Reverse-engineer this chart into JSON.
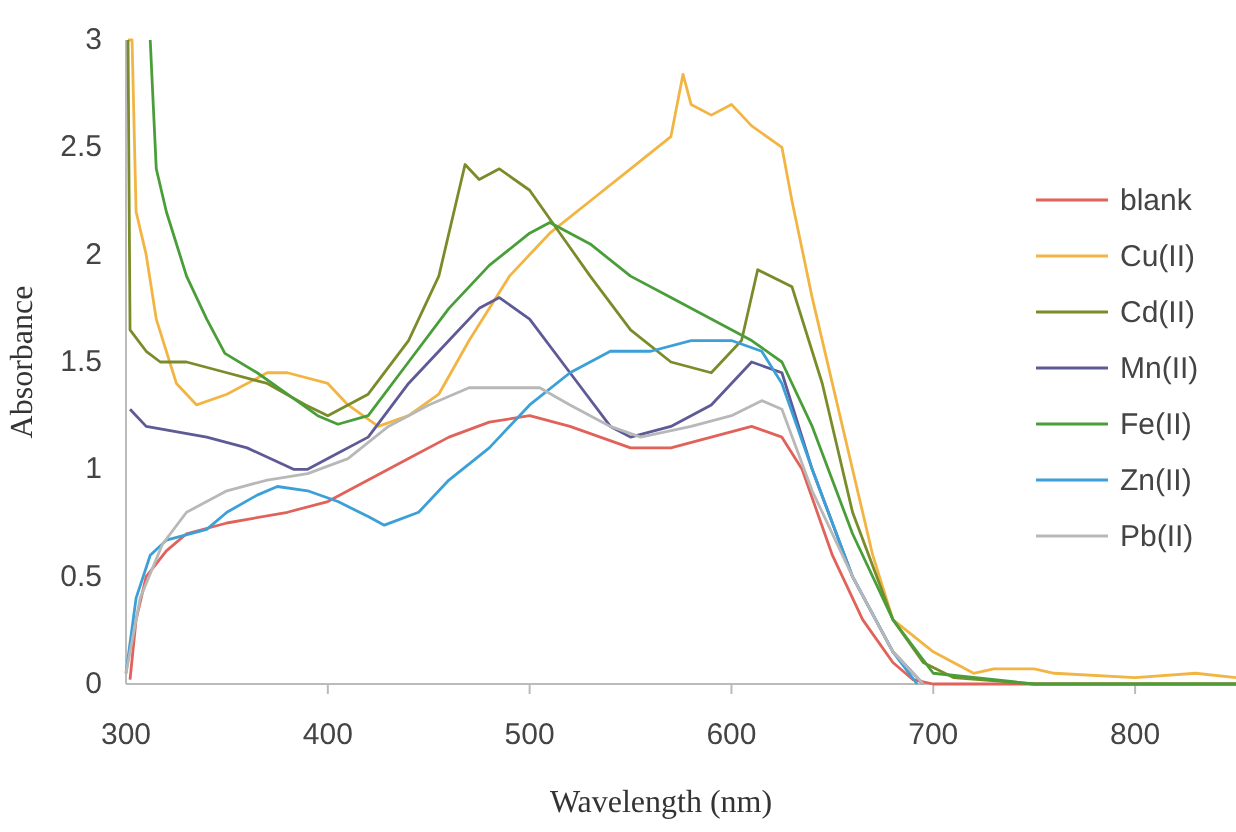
{
  "chart_data": {
    "type": "line",
    "xlabel": "Wavelength (nm)",
    "ylabel": "Absorbance",
    "xlim": [
      300,
      850
    ],
    "xticks": [
      300,
      400,
      500,
      600,
      700,
      800
    ],
    "ylim": [
      0,
      3
    ],
    "yticks": [
      0,
      0.5,
      1,
      1.5,
      2,
      2.5,
      3
    ],
    "grid": false,
    "legend": "right",
    "marker": "none",
    "line_style": "solid",
    "series": [
      {
        "name": "blank",
        "color": "#e0625a",
        "x": [
          302,
          305,
          310,
          320,
          330,
          350,
          380,
          400,
          420,
          440,
          460,
          480,
          500,
          520,
          550,
          570,
          590,
          610,
          625,
          635,
          650,
          665,
          680,
          690,
          700,
          750,
          800,
          850
        ],
        "values": [
          0.02,
          0.3,
          0.5,
          0.62,
          0.7,
          0.75,
          0.8,
          0.85,
          0.95,
          1.05,
          1.15,
          1.22,
          1.25,
          1.2,
          1.1,
          1.1,
          1.15,
          1.2,
          1.15,
          1.0,
          0.6,
          0.3,
          0.1,
          0.02,
          0,
          0,
          0,
          0
        ]
      },
      {
        "name": "Cu(II)",
        "color": "#f2b544",
        "x": [
          301,
          303,
          305,
          310,
          315,
          325,
          335,
          350,
          370,
          380,
          400,
          410,
          425,
          440,
          455,
          470,
          490,
          510,
          530,
          550,
          570,
          576,
          580,
          590,
          600,
          610,
          625,
          630,
          640,
          655,
          670,
          680,
          700,
          710,
          720,
          730,
          750,
          760,
          800,
          830,
          850
        ],
        "values": [
          3,
          3,
          2.2,
          2.0,
          1.7,
          1.4,
          1.3,
          1.35,
          1.45,
          1.45,
          1.4,
          1.3,
          1.2,
          1.25,
          1.35,
          1.6,
          1.9,
          2.1,
          2.25,
          2.4,
          2.55,
          2.84,
          2.7,
          2.65,
          2.7,
          2.6,
          2.5,
          2.25,
          1.8,
          1.2,
          0.6,
          0.3,
          0.15,
          0.1,
          0.05,
          0.07,
          0.07,
          0.05,
          0.03,
          0.05,
          0.03
        ]
      },
      {
        "name": "Cd(II)",
        "color": "#7a8c2a",
        "x": [
          301,
          302,
          310,
          317,
          330,
          350,
          370,
          389,
          400,
          420,
          440,
          455,
          468,
          475,
          485,
          500,
          515,
          530,
          550,
          570,
          590,
          605,
          613,
          630,
          645,
          660,
          680,
          695,
          710,
          750,
          800,
          850
        ],
        "values": [
          3,
          1.65,
          1.55,
          1.5,
          1.5,
          1.45,
          1.4,
          1.3,
          1.25,
          1.35,
          1.6,
          1.9,
          2.42,
          2.35,
          2.4,
          2.3,
          2.1,
          1.9,
          1.65,
          1.5,
          1.45,
          1.6,
          1.93,
          1.85,
          1.4,
          0.8,
          0.3,
          0.1,
          0.03,
          0,
          0,
          0
        ]
      },
      {
        "name": "Mn(II)",
        "color": "#5e5a96",
        "x": [
          302,
          310,
          340,
          360,
          383,
          390,
          400,
          420,
          440,
          460,
          475,
          485,
          500,
          520,
          540,
          550,
          570,
          590,
          610,
          625,
          640,
          660,
          680,
          695
        ],
        "values": [
          1.28,
          1.2,
          1.15,
          1.1,
          1.0,
          1.0,
          1.05,
          1.15,
          1.4,
          1.6,
          1.75,
          1.8,
          1.7,
          1.45,
          1.2,
          1.15,
          1.2,
          1.3,
          1.5,
          1.45,
          1.0,
          0.5,
          0.15,
          0
        ]
      },
      {
        "name": "Fe(II)",
        "color": "#4a9e3a",
        "x": [
          312,
          315,
          320,
          330,
          340,
          349,
          365,
          380,
          395,
          405,
          420,
          440,
          460,
          480,
          500,
          510,
          530,
          550,
          570,
          590,
          610,
          625,
          640,
          660,
          680,
          700,
          750,
          800,
          850
        ],
        "values": [
          3,
          2.4,
          2.2,
          1.9,
          1.7,
          1.54,
          1.45,
          1.35,
          1.25,
          1.21,
          1.25,
          1.5,
          1.75,
          1.95,
          2.1,
          2.15,
          2.05,
          1.9,
          1.8,
          1.7,
          1.6,
          1.5,
          1.2,
          0.7,
          0.3,
          0.05,
          0,
          0,
          0
        ]
      },
      {
        "name": "Zn(II)",
        "color": "#3ca0d8",
        "x": [
          300,
          305,
          312,
          320,
          340,
          350,
          365,
          375,
          390,
          405,
          420,
          428,
          445,
          460,
          480,
          500,
          520,
          540,
          560,
          580,
          600,
          615,
          625,
          640,
          660,
          680,
          692
        ],
        "values": [
          0.05,
          0.4,
          0.6,
          0.67,
          0.72,
          0.8,
          0.88,
          0.92,
          0.9,
          0.85,
          0.78,
          0.74,
          0.8,
          0.95,
          1.1,
          1.3,
          1.45,
          1.55,
          1.55,
          1.6,
          1.6,
          1.55,
          1.4,
          1.0,
          0.5,
          0.15,
          0
        ]
      },
      {
        "name": "Pb(II)",
        "color": "#b8b8b8",
        "x": [
          300,
          307,
          318,
          330,
          350,
          370,
          390,
          410,
          430,
          450,
          470,
          490,
          505,
          520,
          540,
          555,
          580,
          600,
          615,
          625,
          640,
          660,
          680,
          695
        ],
        "values": [
          0.05,
          0.4,
          0.65,
          0.8,
          0.9,
          0.95,
          0.98,
          1.05,
          1.2,
          1.3,
          1.38,
          1.38,
          1.38,
          1.3,
          1.2,
          1.15,
          1.2,
          1.25,
          1.32,
          1.28,
          0.9,
          0.5,
          0.15,
          0
        ]
      }
    ]
  }
}
